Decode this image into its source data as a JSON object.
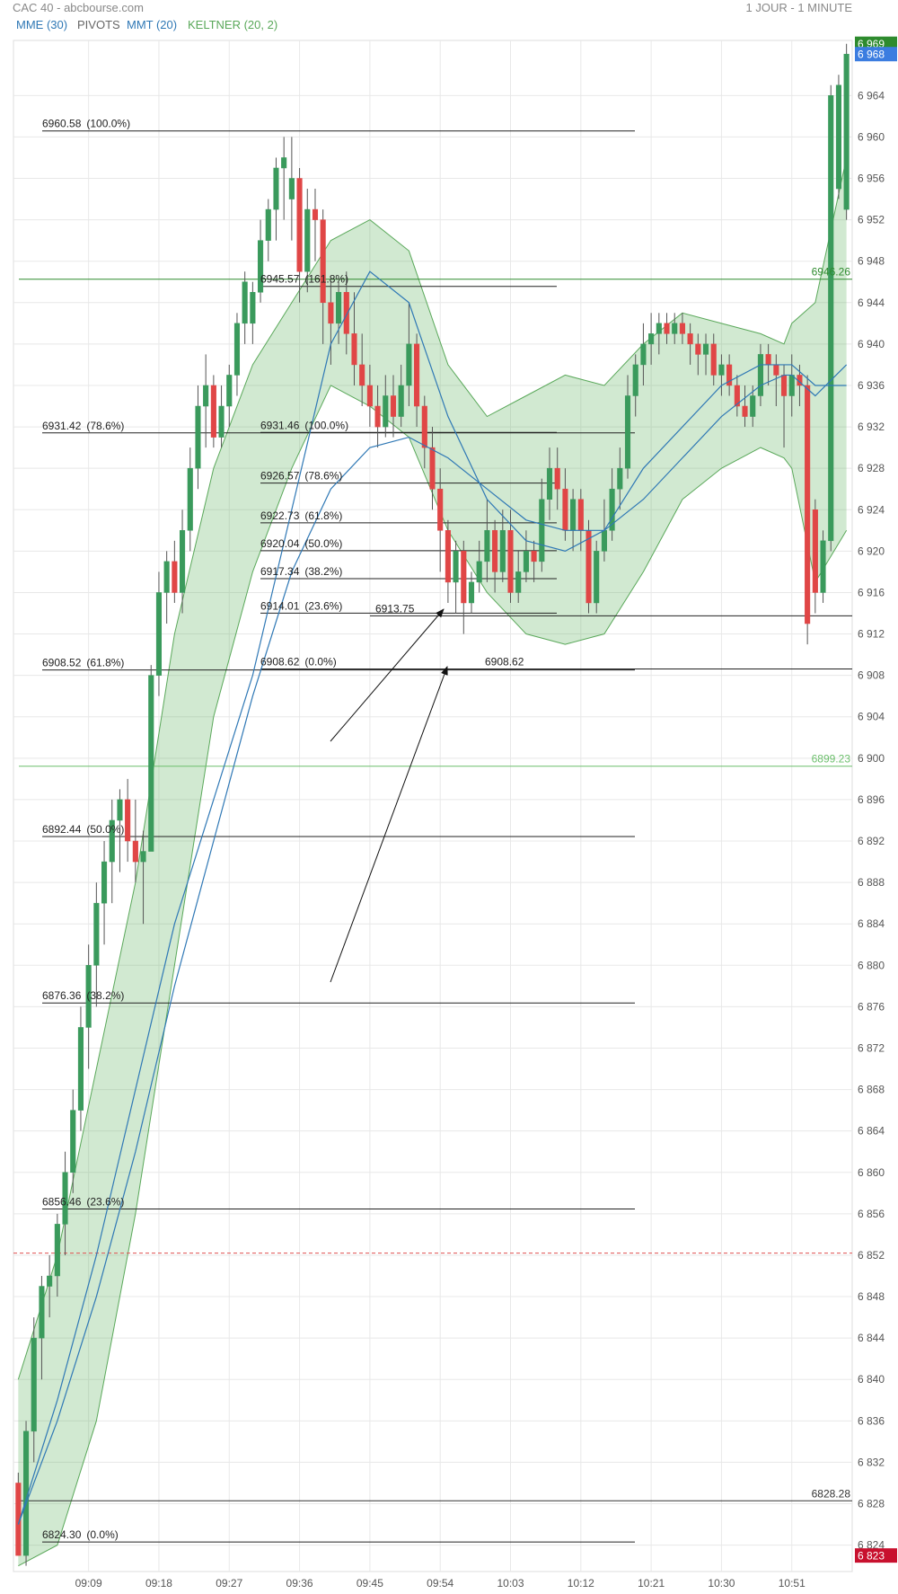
{
  "chart_data": {
    "type": "candlestick",
    "title": "CAC 40 - abcbourse.com",
    "subtitle": "1 JOUR - 1 MINUTE",
    "up_color": "#3a9a5c",
    "down_color": "#e04646",
    "ylim": [
      6821.45,
      6968.8
    ],
    "yticks": [
      {
        "value": 6824,
        "label": "6 824"
      },
      {
        "value": 6828,
        "label": "6 828"
      },
      {
        "value": 6832,
        "label": "6 832"
      },
      {
        "value": 6836,
        "label": "6 836"
      },
      {
        "value": 6840,
        "label": "6 840"
      },
      {
        "value": 6844,
        "label": "6 844"
      },
      {
        "value": 6848,
        "label": "6 848"
      },
      {
        "value": 6852,
        "label": "6 852"
      },
      {
        "value": 6856,
        "label": "6 856"
      },
      {
        "value": 6860,
        "label": "6 860"
      },
      {
        "value": 6864,
        "label": "6 864"
      },
      {
        "value": 6868,
        "label": "6 868"
      },
      {
        "value": 6872,
        "label": "6 872"
      },
      {
        "value": 6876,
        "label": "6 876"
      },
      {
        "value": 6880,
        "label": "6 880"
      },
      {
        "value": 6884,
        "label": "6 884"
      },
      {
        "value": 6888,
        "label": "6 888"
      },
      {
        "value": 6892,
        "label": "6 892"
      },
      {
        "value": 6896,
        "label": "6 896"
      },
      {
        "value": 6900,
        "label": "6 900"
      },
      {
        "value": 6904,
        "label": "6 904"
      },
      {
        "value": 6908,
        "label": "6 908"
      },
      {
        "value": 6912,
        "label": "6 912"
      },
      {
        "value": 6916,
        "label": "6 916"
      },
      {
        "value": 6920,
        "label": "6 920"
      },
      {
        "value": 6924,
        "label": "6 924"
      },
      {
        "value": 6928,
        "label": "6 928"
      },
      {
        "value": 6932,
        "label": "6 932"
      },
      {
        "value": 6936,
        "label": "6 936"
      },
      {
        "value": 6940,
        "label": "6 940"
      },
      {
        "value": 6944,
        "label": "6 944"
      },
      {
        "value": 6948,
        "label": "6 948"
      },
      {
        "value": 6952,
        "label": "6 952"
      },
      {
        "value": 6956,
        "label": "6 956"
      },
      {
        "value": 6960,
        "label": "6 960"
      },
      {
        "value": 6964,
        "label": "6 964"
      }
    ],
    "xticks": [
      "09:09",
      "09:18",
      "09:27",
      "09:36",
      "09:45",
      "09:54",
      "10:03",
      "10:12",
      "10:21",
      "10:30",
      "10:51"
    ],
    "grid": true,
    "x": [
      "09:00",
      "09:01",
      "09:02",
      "09:03",
      "09:04",
      "09:05",
      "09:06",
      "09:07",
      "09:08",
      "09:09",
      "09:10",
      "09:11",
      "09:12",
      "09:13",
      "09:14",
      "09:15",
      "09:16",
      "09:17",
      "09:18",
      "09:19",
      "09:20",
      "09:21",
      "09:22",
      "09:23",
      "09:24",
      "09:25",
      "09:26",
      "09:27",
      "09:28",
      "09:29",
      "09:30",
      "09:31",
      "09:32",
      "09:33",
      "09:34",
      "09:35",
      "09:36",
      "09:37",
      "09:38",
      "09:39",
      "09:40",
      "09:41",
      "09:42",
      "09:43",
      "09:44",
      "09:45",
      "09:46",
      "09:47",
      "09:48",
      "09:49",
      "09:50",
      "09:51",
      "09:52",
      "09:53",
      "09:54",
      "09:55",
      "09:56",
      "09:57",
      "09:58",
      "09:59",
      "10:00",
      "10:01",
      "10:02",
      "10:03",
      "10:04",
      "10:05",
      "10:06",
      "10:07",
      "10:08",
      "10:09",
      "10:10",
      "10:11",
      "10:12",
      "10:13",
      "10:14",
      "10:15",
      "10:16",
      "10:17",
      "10:18",
      "10:19",
      "10:20",
      "10:21",
      "10:22",
      "10:23",
      "10:24",
      "10:25",
      "10:26",
      "10:27",
      "10:28",
      "10:29",
      "10:30",
      "10:31",
      "10:32",
      "10:33",
      "10:34",
      "10:35",
      "10:36",
      "10:37",
      "10:38",
      "10:51",
      "10:52",
      "10:53",
      "10:54",
      "10:55",
      "10:56",
      "10:57",
      "10:58"
    ],
    "candles": [
      [
        6830,
        6831,
        6823,
        6823
      ],
      [
        6823,
        6836,
        6822,
        6835
      ],
      [
        6835,
        6846,
        6832,
        6844
      ],
      [
        6844,
        6850,
        6840,
        6849
      ],
      [
        6849,
        6852,
        6846,
        6850
      ],
      [
        6850,
        6856,
        6848,
        6855
      ],
      [
        6855,
        6862,
        6852,
        6860
      ],
      [
        6860,
        6868,
        6858,
        6866
      ],
      [
        6866,
        6876,
        6864,
        6874
      ],
      [
        6874,
        6882,
        6870,
        6880
      ],
      [
        6880,
        6888,
        6876,
        6886
      ],
      [
        6886,
        6892,
        6882,
        6890
      ],
      [
        6890,
        6896,
        6886,
        6894
      ],
      [
        6894,
        6897,
        6889,
        6896
      ],
      [
        6896,
        6898,
        6890,
        6892
      ],
      [
        6892,
        6896,
        6888,
        6890
      ],
      [
        6890,
        6893,
        6884,
        6891
      ],
      [
        6891,
        6909,
        6891,
        6908
      ],
      [
        6908,
        6918,
        6906,
        6916
      ],
      [
        6916,
        6920,
        6913,
        6919
      ],
      [
        6919,
        6921,
        6915,
        6916
      ],
      [
        6916,
        6924,
        6914,
        6922
      ],
      [
        6922,
        6930,
        6920,
        6928
      ],
      [
        6928,
        6936,
        6926,
        6934
      ],
      [
        6934,
        6939,
        6930,
        6936
      ],
      [
        6936,
        6937,
        6930,
        6931
      ],
      [
        6931,
        6936,
        6930,
        6934
      ],
      [
        6934,
        6938,
        6932,
        6937
      ],
      [
        6937,
        6943,
        6935,
        6942
      ],
      [
        6942,
        6947,
        6940,
        6946
      ],
      [
        6942,
        6946,
        6940,
        6945
      ],
      [
        6945,
        6952,
        6944,
        6950
      ],
      [
        6950,
        6954,
        6948,
        6953
      ],
      [
        6953,
        6958,
        6950,
        6957
      ],
      [
        6957,
        6960,
        6952,
        6958
      ],
      [
        6954,
        6960,
        6950,
        6956
      ],
      [
        6956,
        6957,
        6944,
        6947
      ],
      [
        6947,
        6955,
        6945,
        6953
      ],
      [
        6953,
        6955,
        6948,
        6952
      ],
      [
        6952,
        6953,
        6940,
        6944
      ],
      [
        6944,
        6946,
        6938,
        6942
      ],
      [
        6942,
        6946,
        6940,
        6945
      ],
      [
        6945,
        6947,
        6939,
        6941
      ],
      [
        6941,
        6945,
        6936,
        6938
      ],
      [
        6938,
        6941,
        6934,
        6936
      ],
      [
        6936,
        6938,
        6932,
        6934
      ],
      [
        6934,
        6936,
        6930,
        6932
      ],
      [
        6932,
        6937,
        6931,
        6935
      ],
      [
        6935,
        6937,
        6931,
        6933
      ],
      [
        6933,
        6938,
        6932,
        6936
      ],
      [
        6936,
        6944,
        6934,
        6940
      ],
      [
        6940,
        6941,
        6932,
        6934
      ],
      [
        6934,
        6935,
        6928,
        6930
      ],
      [
        6930,
        6932,
        6924,
        6926
      ],
      [
        6926,
        6928,
        6918,
        6922
      ],
      [
        6922,
        6923,
        6915,
        6917
      ],
      [
        6917,
        6921,
        6914,
        6920
      ],
      [
        6920,
        6921,
        6912,
        6915
      ],
      [
        6915,
        6918,
        6914,
        6917
      ],
      [
        6917,
        6921,
        6916,
        6919
      ],
      [
        6919,
        6925,
        6917,
        6922
      ],
      [
        6922,
        6923,
        6916,
        6918
      ],
      [
        6918,
        6924,
        6917,
        6922
      ],
      [
        6922,
        6924,
        6915,
        6916
      ],
      [
        6916,
        6920,
        6915,
        6918
      ],
      [
        6918,
        6922,
        6917,
        6920
      ],
      [
        6920,
        6921,
        6917,
        6919
      ],
      [
        6919,
        6927,
        6918,
        6925
      ],
      [
        6925,
        6930,
        6923,
        6928
      ],
      [
        6928,
        6930,
        6924,
        6926
      ],
      [
        6926,
        6928,
        6921,
        6922
      ],
      [
        6922,
        6926,
        6920,
        6925
      ],
      [
        6925,
        6926,
        6920,
        6922
      ],
      [
        6922,
        6923,
        6914,
        6915
      ],
      [
        6915,
        6921,
        6914,
        6920
      ],
      [
        6920,
        6925,
        6919,
        6922
      ],
      [
        6922,
        6928,
        6921,
        6926
      ],
      [
        6926,
        6930,
        6924,
        6928
      ],
      [
        6928,
        6937,
        6927,
        6935
      ],
      [
        6935,
        6939,
        6933,
        6938
      ],
      [
        6938,
        6942,
        6936,
        6940
      ],
      [
        6940,
        6943,
        6938,
        6941
      ],
      [
        6941,
        6943,
        6939,
        6942
      ],
      [
        6942,
        6943,
        6940,
        6941
      ],
      [
        6941,
        6943,
        6940,
        6942
      ],
      [
        6942,
        6943,
        6940,
        6941
      ],
      [
        6941,
        6942,
        6938,
        6940
      ],
      [
        6940,
        6941,
        6937,
        6939
      ],
      [
        6939,
        6941,
        6937,
        6940
      ],
      [
        6940,
        6941,
        6936,
        6937
      ],
      [
        6937,
        6939,
        6935,
        6938
      ],
      [
        6938,
        6939,
        6935,
        6936
      ],
      [
        6936,
        6937,
        6933,
        6934
      ],
      [
        6934,
        6936,
        6932,
        6933
      ],
      [
        6933,
        6936,
        6932,
        6935
      ],
      [
        6935,
        6940,
        6934,
        6939
      ],
      [
        6939,
        6940,
        6936,
        6938
      ],
      [
        6938,
        6939,
        6934,
        6937
      ],
      [
        6937,
        6938,
        6930,
        6935
      ],
      [
        6935,
        6939,
        6933,
        6937
      ],
      [
        6937,
        6938,
        6934,
        6936
      ],
      [
        6936,
        6937,
        6911,
        6913
      ],
      [
        6924,
        6925,
        6914,
        6916
      ],
      [
        6916,
        6922,
        6915,
        6921
      ],
      [
        6921,
        6965,
        6920,
        6964
      ],
      [
        6955,
        6966,
        6954,
        6965
      ],
      [
        6953,
        6969,
        6952,
        6968
      ]
    ],
    "indicators": {
      "x": [
        "09:00",
        "09:05",
        "09:10",
        "09:15",
        "09:20",
        "09:25",
        "09:30",
        "09:35",
        "09:40",
        "09:45",
        "09:50",
        "09:55",
        "10:00",
        "10:05",
        "10:10",
        "10:15",
        "10:20",
        "10:25",
        "10:30",
        "10:35",
        "10:38",
        "10:51",
        "10:54",
        "10:58"
      ],
      "series": [
        {
          "name": "MME (30)",
          "color": "#2f78b5",
          "values": [
            6826,
            6836,
            6848,
            6862,
            6878,
            6892,
            6906,
            6918,
            6926,
            6930,
            6931,
            6929,
            6926,
            6923,
            6922,
            6922,
            6925,
            6929,
            6933,
            6936,
            6937,
            6937,
            6935,
            6938
          ]
        },
        {
          "name": "MMT (20)",
          "color": "#2f78b5",
          "values": [
            6826,
            6838,
            6852,
            6868,
            6884,
            6896,
            6908,
            6924,
            6940,
            6947,
            6944,
            6933,
            6925,
            6921,
            6920,
            6922,
            6928,
            6932,
            6936,
            6938,
            6938,
            6938,
            6936,
            6936
          ]
        }
      ],
      "keltner": {
        "name": "KELTNER (20, 2)",
        "color": "#5aa85a",
        "fill": "rgba(90,175,90,0.28)",
        "upper": [
          6840,
          6852,
          6870,
          6888,
          6912,
          6928,
          6938,
          6944,
          6950,
          6952,
          6949,
          6938,
          6933,
          6935,
          6937,
          6936,
          6940,
          6943,
          6942,
          6941,
          6940,
          6942,
          6944,
          6958
        ],
        "lower": [
          6822,
          6824,
          6836,
          6856,
          6880,
          6904,
          6918,
          6928,
          6936,
          6934,
          6931,
          6922,
          6916,
          6912,
          6911,
          6912,
          6918,
          6925,
          6928,
          6930,
          6929,
          6928,
          6917,
          6922
        ]
      }
    },
    "pivots": {
      "name": "PIVOTS",
      "color": "#666666",
      "levels": [
        {
          "value": 6946.26,
          "label": "6946.26",
          "color": "#2e8b2e"
        },
        {
          "value": 6899.23,
          "label": "6899.23",
          "color": "#6cbf6c"
        },
        {
          "value": 6828.28,
          "label": "6828.28",
          "color": "#333333"
        }
      ]
    },
    "reference": {
      "value": 6852.2,
      "color": "#e05050"
    },
    "fibonacci": [
      {
        "levels": [
          {
            "value": 6960.58,
            "label": "6960.58",
            "ratio": "(100.0%)"
          },
          {
            "value": 6931.42,
            "label": "6931.42",
            "ratio": "(78.6%)"
          },
          {
            "value": 6908.52,
            "label": "6908.52",
            "ratio": "(61.8%)"
          },
          {
            "value": 6892.44,
            "label": "6892.44",
            "ratio": "(50.0%)"
          },
          {
            "value": 6876.36,
            "label": "6876.36",
            "ratio": "(38.2%)"
          },
          {
            "value": 6856.46,
            "label": "6856.46",
            "ratio": "(23.6%)"
          },
          {
            "value": 6824.3,
            "label": "6824.30",
            "ratio": "(0.0%)"
          }
        ]
      },
      {
        "levels": [
          {
            "value": 6945.57,
            "label": "6945.57",
            "ratio": "(161.8%)"
          },
          {
            "value": 6931.46,
            "label": "6931.46",
            "ratio": "(100.0%)"
          },
          {
            "value": 6926.57,
            "label": "6926.57",
            "ratio": "(78.6%)"
          },
          {
            "value": 6922.73,
            "label": "6922.73",
            "ratio": "(61.8%)"
          },
          {
            "value": 6920.04,
            "label": "6920.04",
            "ratio": "(50.0%)"
          },
          {
            "value": 6917.34,
            "label": "6917.34",
            "ratio": "(38.2%)"
          },
          {
            "value": 6914.01,
            "label": "6914.01",
            "ratio": "(23.6%)"
          },
          {
            "value": 6908.62,
            "label": "6908.62",
            "ratio": "(0.0%)"
          }
        ]
      }
    ],
    "annotations": [
      {
        "value": 6913.75,
        "label": "6913.75"
      },
      {
        "value": 6908.62,
        "label": "6908.62"
      }
    ],
    "price_labels": [
      {
        "value": 6969,
        "label": "6 969",
        "color": "#2e8b2e"
      },
      {
        "value": 6968,
        "label": "6 968",
        "color": "#3b7de0"
      },
      {
        "value": 6823,
        "label": "6 823",
        "color": "#c8102e"
      }
    ]
  }
}
